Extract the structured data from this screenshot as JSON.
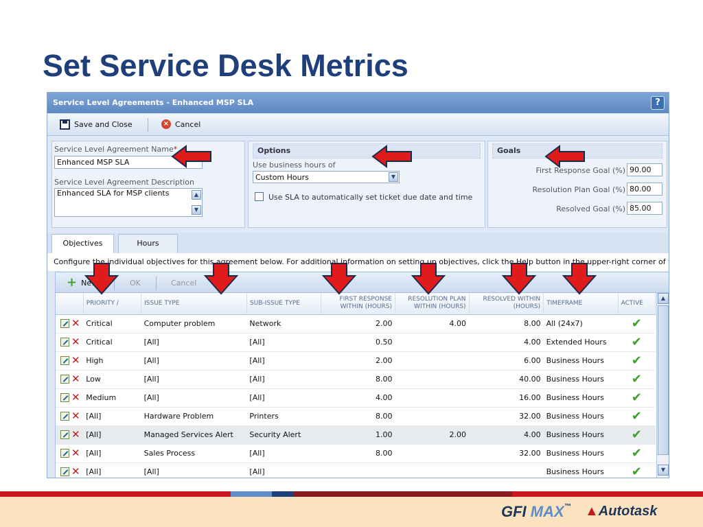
{
  "slide_title": "Set Service Desk Metrics",
  "window": {
    "title": "Service Level Agreements - Enhanced MSP SLA",
    "help_label": "?"
  },
  "toolbar": {
    "save_label": "Save and Close",
    "cancel_label": "Cancel"
  },
  "sla_panel": {
    "name_label": "Service Level Agreement Name",
    "required_mark": "*",
    "name_value": "Enhanced MSP SLA",
    "desc_label": "Service Level Agreement Description",
    "desc_value": "Enhanced SLA for MSP clients"
  },
  "options_panel": {
    "title": "Options",
    "business_hours_label": "Use business hours of",
    "business_hours_value": "Custom Hours",
    "auto_set_label": "Use SLA to automatically set ticket due date and time",
    "auto_set_checked": false
  },
  "goals_panel": {
    "title": "Goals",
    "first_response_label": "First Response Goal (%)",
    "first_response_value": "90.00",
    "resolution_plan_label": "Resolution Plan Goal (%)",
    "resolution_plan_value": "80.00",
    "resolved_label": "Resolved Goal (%)",
    "resolved_value": "85.00"
  },
  "tabs": [
    {
      "label": "Objectives",
      "active": true
    },
    {
      "label": "Hours",
      "active": false
    }
  ],
  "config_text": "Configure the individual objectives for this agreement below. For additional information on setting up objectives, click the Help button in the upper-right corner of the screen.",
  "grid_toolbar": {
    "new_label": "New",
    "ok_label": "OK",
    "cancel_label": "Cancel"
  },
  "grid": {
    "columns": [
      "PRIORITY /",
      "ISSUE TYPE",
      "SUB-ISSUE TYPE",
      "FIRST RESPONSE WITHIN (HOURS)",
      "RESOLUTION PLAN WITHIN (HOURS)",
      "RESOLVED WITHIN (HOURS)",
      "TIMEFRAME",
      "ACTIVE"
    ],
    "rows": [
      {
        "priority": "Critical",
        "issue": "Computer problem",
        "sub_issue": "Network",
        "first_response": "2.00",
        "resolution_plan": "4.00",
        "resolved": "8.00",
        "timeframe": "All (24x7)",
        "active": true
      },
      {
        "priority": "Critical",
        "issue": "[All]",
        "sub_issue": "[All]",
        "first_response": "0.50",
        "resolution_plan": "",
        "resolved": "4.00",
        "timeframe": "Extended Hours",
        "active": true
      },
      {
        "priority": "High",
        "issue": "[All]",
        "sub_issue": "[All]",
        "first_response": "2.00",
        "resolution_plan": "",
        "resolved": "6.00",
        "timeframe": "Business Hours",
        "active": true
      },
      {
        "priority": "Low",
        "issue": "[All]",
        "sub_issue": "[All]",
        "first_response": "8.00",
        "resolution_plan": "",
        "resolved": "40.00",
        "timeframe": "Business Hours",
        "active": true
      },
      {
        "priority": "Medium",
        "issue": "[All]",
        "sub_issue": "[All]",
        "first_response": "4.00",
        "resolution_plan": "",
        "resolved": "16.00",
        "timeframe": "Business Hours",
        "active": true
      },
      {
        "priority": "[All]",
        "issue": "Hardware Problem",
        "sub_issue": "Printers",
        "first_response": "8.00",
        "resolution_plan": "",
        "resolved": "32.00",
        "timeframe": "Business Hours",
        "active": true
      },
      {
        "priority": "[All]",
        "issue": "Managed Services Alert",
        "sub_issue": "Security Alert",
        "first_response": "1.00",
        "resolution_plan": "2.00",
        "resolved": "4.00",
        "timeframe": "Business Hours",
        "active": true,
        "highlighted": true
      },
      {
        "priority": "[All]",
        "issue": "Sales Process",
        "sub_issue": "[All]",
        "first_response": "8.00",
        "resolution_plan": "",
        "resolved": "32.00",
        "timeframe": "Business Hours",
        "active": true
      },
      {
        "priority": "[All]",
        "issue": "[All]",
        "sub_issue": "[All]",
        "first_response": "",
        "resolution_plan": "",
        "resolved": "",
        "timeframe": "Business Hours",
        "active": true
      }
    ]
  },
  "footer": {
    "logo_gfi": "GFI",
    "logo_max": "MAX",
    "logo_tm": "™",
    "logo_autotask": "Autotask"
  },
  "colors": {
    "title": "#1f3f7a",
    "arrow": "#e01b1b",
    "accent_blue": "#5e88c3",
    "footer_bg": "#fbe3c2"
  }
}
